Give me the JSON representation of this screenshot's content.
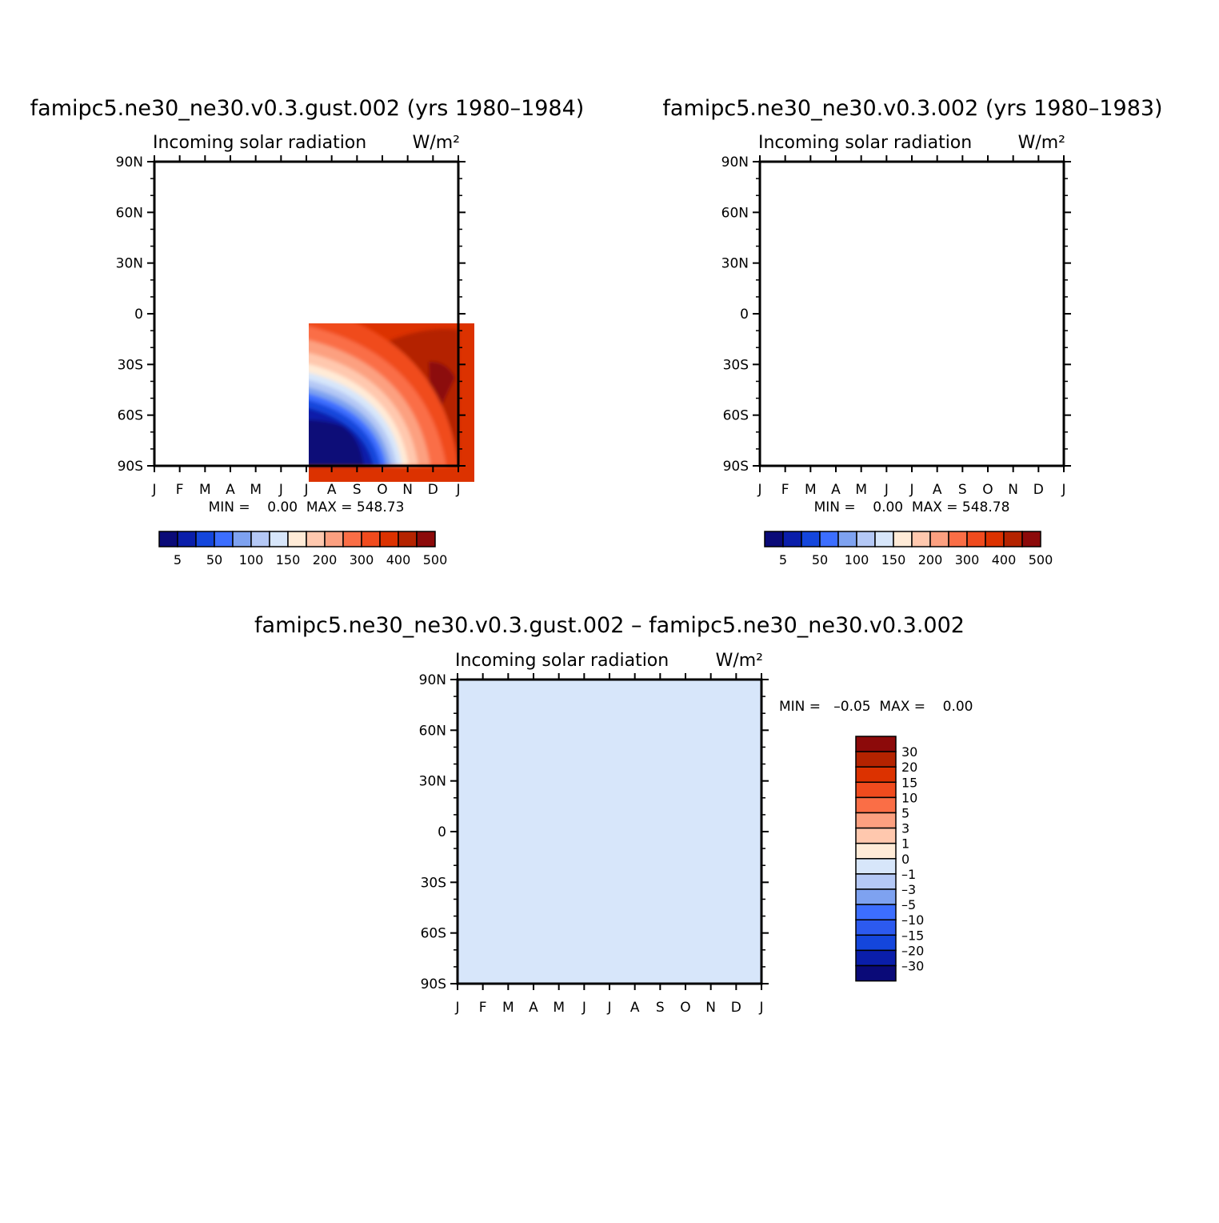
{
  "chart_data": [
    {
      "type": "heatmap",
      "title": "famipc5.ne30_ne30.v0.3.gust.002 (yrs 1980–1984)",
      "subtitle_left": "Incoming solar radiation",
      "subtitle_right": "W/m²",
      "x_ticks": [
        "J",
        "F",
        "M",
        "A",
        "M",
        "J",
        "J",
        "A",
        "S",
        "O",
        "N",
        "D",
        "J"
      ],
      "y_ticks": [
        "90N",
        "60N",
        "30N",
        "0",
        "30S",
        "60S",
        "90S"
      ],
      "stats": "MIN =    0.00  MAX = 548.73",
      "min": 0.0,
      "max": 548.73,
      "colorbar_levels": [
        "5",
        "50",
        "100",
        "150",
        "200",
        "300",
        "400",
        "500"
      ]
    },
    {
      "type": "heatmap",
      "title": "famipc5.ne30_ne30.v0.3.002 (yrs 1980–1983)",
      "subtitle_left": "Incoming solar radiation",
      "subtitle_right": "W/m²",
      "x_ticks": [
        "J",
        "F",
        "M",
        "A",
        "M",
        "J",
        "J",
        "A",
        "S",
        "O",
        "N",
        "D",
        "J"
      ],
      "y_ticks": [
        "90N",
        "60N",
        "30N",
        "0",
        "30S",
        "60S",
        "90S"
      ],
      "stats": "MIN =    0.00  MAX = 548.78",
      "min": 0.0,
      "max": 548.78,
      "colorbar_levels": [
        "5",
        "50",
        "100",
        "150",
        "200",
        "300",
        "400",
        "500"
      ]
    },
    {
      "type": "heatmap",
      "title": "famipc5.ne30_ne30.v0.3.gust.002 – famipc5.ne30_ne30.v0.3.002",
      "subtitle_left": "Incoming solar radiation",
      "subtitle_right": "W/m²",
      "x_ticks": [
        "J",
        "F",
        "M",
        "A",
        "M",
        "J",
        "J",
        "A",
        "S",
        "O",
        "N",
        "D",
        "J"
      ],
      "y_ticks": [
        "90N",
        "60N",
        "30N",
        "0",
        "30S",
        "60S",
        "90S"
      ],
      "stats": "MIN =   –0.05  MAX =    0.00",
      "min": -0.05,
      "max": 0.0,
      "colorbar_levels": [
        "30",
        "20",
        "15",
        "10",
        "5",
        "3",
        "1",
        "0",
        "–1",
        "–3",
        "–5",
        "–10",
        "–15",
        "–20",
        "–30"
      ]
    }
  ],
  "colors": {
    "abs_scale": [
      "#0a0a78",
      "#0a1eaa",
      "#1446dc",
      "#3c6eff",
      "#7ea2f0",
      "#b4c8f5",
      "#d7e6fa",
      "#ffebd7",
      "#ffc8ae",
      "#fca080",
      "#fa6e46",
      "#f04b1e",
      "#dc3200",
      "#b42300",
      "#8c0a0a"
    ],
    "diff_scale": [
      "#0a0a78",
      "#0a1eaa",
      "#1446dc",
      "#2c5aef",
      "#3c6eff",
      "#7ea2f0",
      "#b4c8f5",
      "#d7e6fa",
      "#ffebd7",
      "#ffc8ae",
      "#fca080",
      "#fa6e46",
      "#f04b1e",
      "#dc3200",
      "#b42300",
      "#8c0a0a"
    ],
    "diff_fill": "#d7e6fa"
  }
}
